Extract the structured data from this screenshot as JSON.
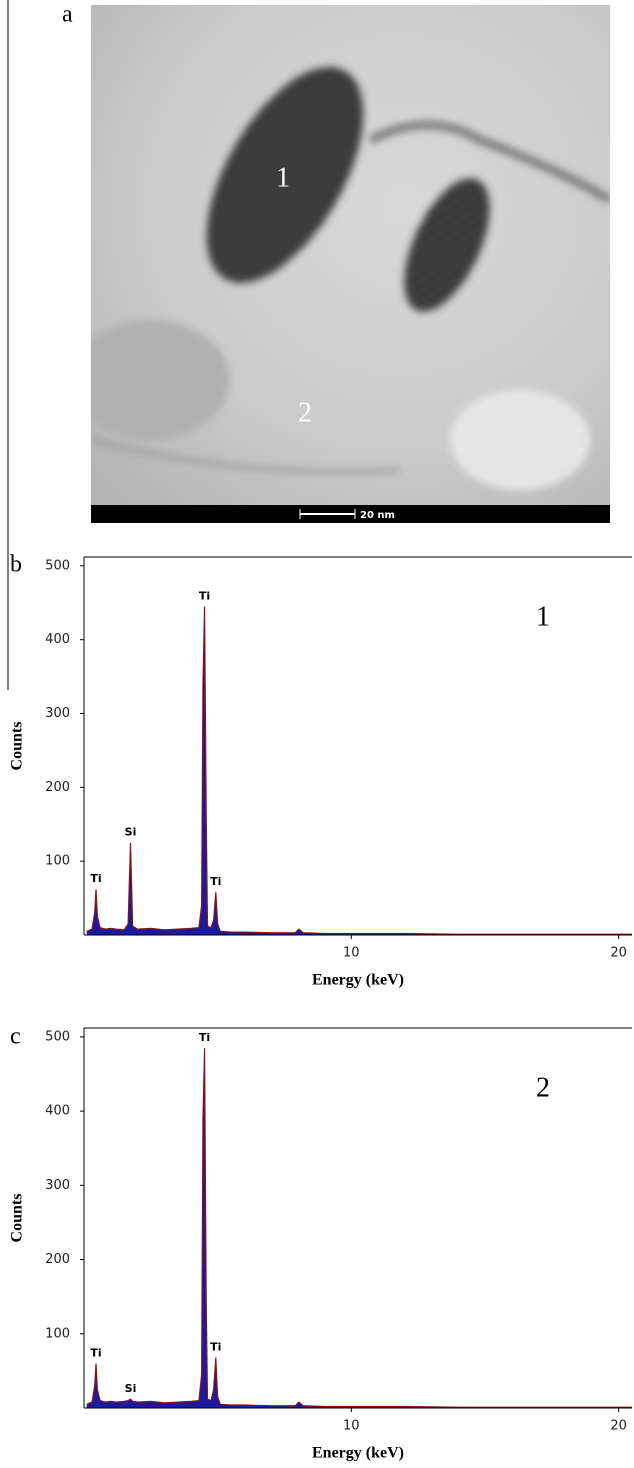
{
  "image_panel": {
    "label": "a",
    "markers": [
      "1",
      "2"
    ],
    "scale_bar": "20 nm"
  },
  "chart_data": [
    {
      "type": "line",
      "label": "b",
      "panel_label": "1",
      "x_label": "Energy (keV)",
      "y_label": "Counts",
      "xlim": [
        0,
        20.5
      ],
      "xticks": [
        10,
        20
      ],
      "ylim": [
        0,
        512
      ],
      "yticks": [
        100,
        200,
        300,
        400,
        500
      ],
      "x": [
        0.1,
        0.3,
        0.4,
        0.45,
        0.5,
        0.6,
        0.8,
        1.0,
        1.2,
        1.5,
        1.65,
        1.74,
        1.82,
        2.0,
        2.5,
        3.0,
        3.5,
        4.0,
        4.3,
        4.4,
        4.45,
        4.51,
        4.57,
        4.62,
        4.75,
        4.85,
        4.93,
        5.0,
        5.1,
        5.5,
        6.0,
        7.0,
        7.9,
        8.04,
        8.2,
        9.0,
        10.0,
        12.0,
        14.0,
        16.0,
        18.0,
        20.0,
        20.5
      ],
      "series": [
        {
          "color": "#1a1aa0",
          "line_color": "#8a1414",
          "values": [
            5,
            8,
            30,
            62,
            25,
            10,
            8,
            9,
            8,
            7,
            15,
            125,
            12,
            8,
            9,
            7,
            8,
            9,
            10,
            40,
            340,
            445,
            170,
            12,
            10,
            20,
            58,
            15,
            5,
            4,
            4,
            3,
            3,
            8,
            3,
            2,
            2,
            2,
            1,
            1,
            1,
            1,
            1
          ]
        }
      ],
      "annotations": [
        {
          "text": "Ti",
          "x": 0.45,
          "y": 62
        },
        {
          "text": "Si",
          "x": 1.74,
          "y": 125
        },
        {
          "text": "Ti",
          "x": 4.51,
          "y": 445
        },
        {
          "text": "Ti",
          "x": 4.93,
          "y": 58
        }
      ]
    },
    {
      "type": "line",
      "label": "c",
      "panel_label": "2",
      "x_label": "Energy (keV)",
      "y_label": "Counts",
      "xlim": [
        0,
        20.5
      ],
      "xticks": [
        10,
        20
      ],
      "ylim": [
        0,
        512
      ],
      "yticks": [
        100,
        200,
        300,
        400,
        500
      ],
      "x": [
        0.1,
        0.3,
        0.4,
        0.45,
        0.5,
        0.6,
        0.8,
        1.0,
        1.2,
        1.5,
        1.65,
        1.74,
        1.82,
        2.0,
        2.5,
        3.0,
        3.5,
        4.0,
        4.3,
        4.4,
        4.45,
        4.51,
        4.57,
        4.62,
        4.75,
        4.85,
        4.93,
        5.0,
        5.1,
        5.5,
        6.0,
        7.0,
        7.9,
        8.04,
        8.2,
        9.0,
        10.0,
        12.0,
        14.0,
        16.0,
        18.0,
        20.0,
        20.5
      ],
      "series": [
        {
          "color": "#1a1aa0",
          "line_color": "#8a1414",
          "values": [
            5,
            8,
            30,
            60,
            25,
            10,
            8,
            9,
            8,
            9,
            10,
            12,
            9,
            8,
            9,
            7,
            8,
            9,
            10,
            45,
            390,
            485,
            150,
            12,
            10,
            25,
            68,
            15,
            5,
            4,
            4,
            3,
            3,
            8,
            3,
            2,
            2,
            2,
            1,
            1,
            1,
            1,
            1
          ]
        }
      ],
      "annotations": [
        {
          "text": "Ti",
          "x": 0.45,
          "y": 60
        },
        {
          "text": "Si",
          "x": 1.74,
          "y": 12
        },
        {
          "text": "Ti",
          "x": 4.51,
          "y": 485
        },
        {
          "text": "Ti",
          "x": 4.93,
          "y": 68
        }
      ]
    }
  ]
}
